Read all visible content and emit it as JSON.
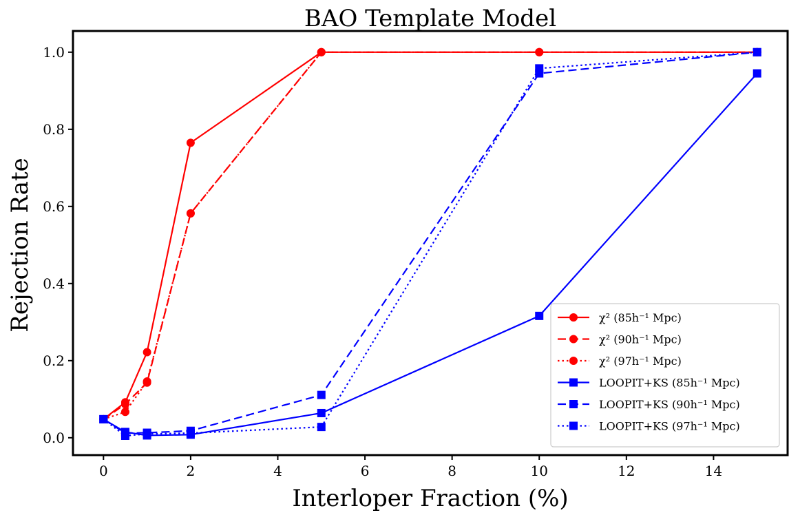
{
  "chart_data": {
    "type": "line",
    "title": "BAO Template Model",
    "xlabel": "Interloper Fraction (%)",
    "ylabel": "Rejection Rate",
    "xlim": [
      -0.7,
      15.7
    ],
    "ylim": [
      -0.045,
      1.055
    ],
    "xticks": [
      0,
      2,
      4,
      6,
      8,
      10,
      12,
      14
    ],
    "yticks": [
      0.0,
      0.2,
      0.4,
      0.6,
      0.8,
      1.0
    ],
    "xtick_labels": [
      "0",
      "2",
      "4",
      "6",
      "8",
      "10",
      "12",
      "14"
    ],
    "ytick_labels": [
      "0.0",
      "0.2",
      "0.4",
      "0.6",
      "0.8",
      "1.0"
    ],
    "grid": false,
    "legend_position": "bottom-right",
    "x": [
      0,
      0.5,
      1,
      2,
      5,
      10,
      15
    ],
    "series": [
      {
        "name": "χ² (85h⁻¹ Mpc)",
        "color": "#ff0000",
        "linestyle": "solid",
        "marker": "circle",
        "values": [
          0.048,
          0.092,
          0.222,
          0.765,
          1.0,
          1.0,
          1.0
        ]
      },
      {
        "name": "χ² (90h⁻¹ Mpc)",
        "color": "#ff0000",
        "linestyle": "dashed",
        "marker": "circle",
        "values": [
          0.048,
          0.087,
          0.143,
          0.582,
          1.0,
          1.0,
          1.0
        ]
      },
      {
        "name": "χ² (97h⁻¹ Mpc)",
        "color": "#ff0000",
        "linestyle": "dotted",
        "marker": "circle",
        "values": [
          0.048,
          0.067,
          0.146,
          0.582,
          1.0,
          1.0,
          1.0
        ]
      },
      {
        "name": "LOOPIT+KS (85h⁻¹ Mpc)",
        "color": "#0000ff",
        "linestyle": "solid",
        "marker": "square",
        "values": [
          0.048,
          0.015,
          0.006,
          0.008,
          0.064,
          0.316,
          0.945
        ]
      },
      {
        "name": "LOOPIT+KS (90h⁻¹ Mpc)",
        "color": "#0000ff",
        "linestyle": "dashed",
        "marker": "square",
        "values": [
          0.048,
          0.012,
          0.013,
          0.018,
          0.111,
          0.945,
          1.0
        ]
      },
      {
        "name": "LOOPIT+KS (97h⁻¹ Mpc)",
        "color": "#0000ff",
        "linestyle": "dotted",
        "marker": "square",
        "values": [
          0.048,
          0.005,
          0.01,
          0.012,
          0.028,
          0.958,
          1.0
        ]
      }
    ]
  }
}
